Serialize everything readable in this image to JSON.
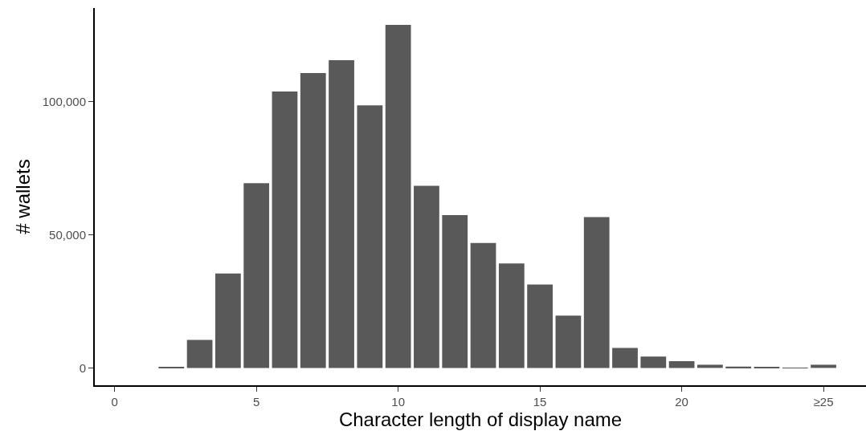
{
  "chart_data": {
    "type": "bar",
    "xlabel": "Character length of display name",
    "ylabel": "# wallets",
    "x": [
      2,
      3,
      4,
      5,
      6,
      7,
      8,
      9,
      10,
      11,
      12,
      13,
      14,
      15,
      16,
      17,
      18,
      19,
      20,
      21,
      22,
      23,
      24,
      25
    ],
    "values": [
      200,
      10500,
      35400,
      69300,
      103700,
      110600,
      115400,
      98500,
      128700,
      68300,
      57300,
      46900,
      39200,
      31300,
      19600,
      56600,
      7500,
      4300,
      2500,
      1200,
      500,
      200,
      100,
      1200
    ],
    "color": "#595959",
    "xlim": [
      -0.7,
      26.5
    ],
    "xticks": [
      0,
      5,
      10,
      15,
      20,
      {
        "value": 25,
        "label": "≥25"
      }
    ],
    "ylim": [
      -6500,
      135000
    ],
    "yticks": [
      {
        "value": 0,
        "label": "0"
      },
      {
        "value": 50000,
        "label": "50,000"
      },
      {
        "value": 100000,
        "label": "100,000"
      }
    ]
  }
}
